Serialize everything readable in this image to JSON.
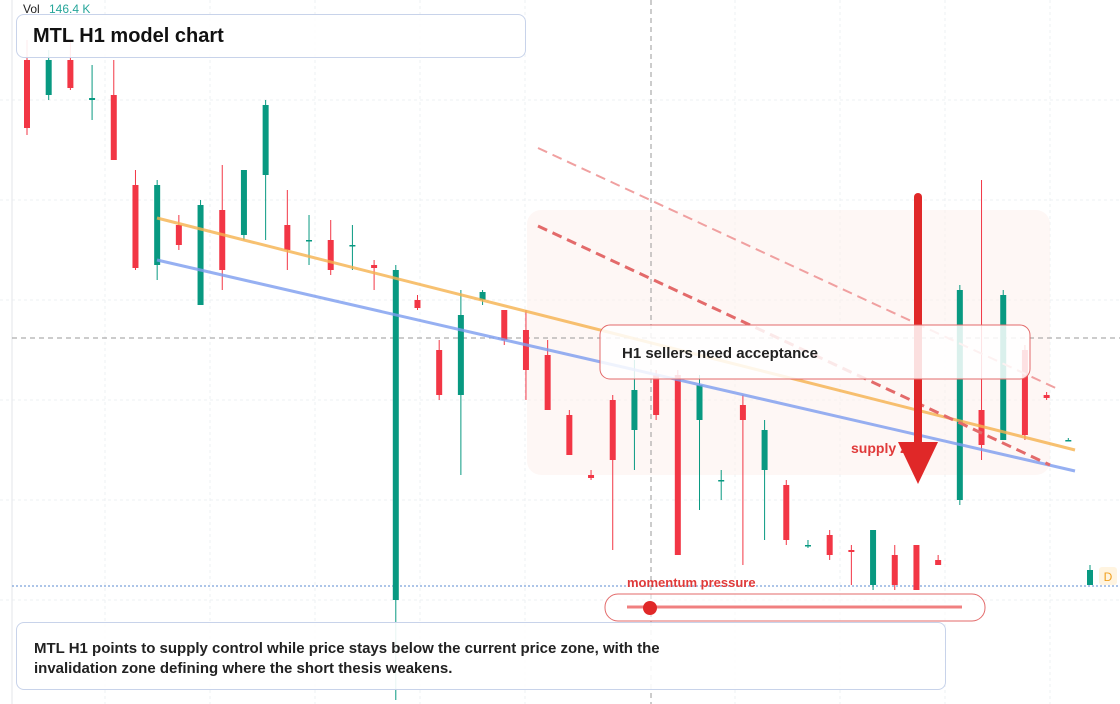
{
  "volume": {
    "label": "Vol",
    "value": "146.4 K"
  },
  "title": "MTL H1 model chart",
  "annotations": {
    "acceptance": "H1 sellers need acceptance",
    "supply": "supply zone",
    "momentum": "momentum pressure",
    "badge": "D",
    "caption": "MTL H1 points to supply control while price stays below the current price zone, with the invalidation zone defining where the short thesis weakens."
  },
  "chart_data": {
    "type": "candlestick",
    "up_color": "#089981",
    "down_color": "#f23645",
    "ylim": [
      0.596,
      1.3
    ],
    "candles": [
      [
        1.24,
        1.26,
        1.165,
        1.172
      ],
      [
        1.205,
        1.25,
        1.2,
        1.24
      ],
      [
        1.24,
        1.26,
        1.21,
        1.212
      ],
      [
        1.2,
        1.235,
        1.18,
        1.202
      ],
      [
        1.205,
        1.24,
        1.14,
        1.14
      ],
      [
        1.115,
        1.13,
        1.03,
        1.032
      ],
      [
        1.035,
        1.12,
        1.02,
        1.115
      ],
      [
        1.075,
        1.085,
        1.05,
        1.055
      ],
      [
        0.995,
        1.1,
        0.995,
        1.095
      ],
      [
        1.09,
        1.135,
        1.01,
        1.03
      ],
      [
        1.065,
        1.13,
        1.06,
        1.13
      ],
      [
        1.125,
        1.2,
        1.06,
        1.195
      ],
      [
        1.075,
        1.11,
        1.03,
        1.05
      ],
      [
        1.06,
        1.085,
        1.035,
        1.06
      ],
      [
        1.06,
        1.08,
        1.025,
        1.03
      ],
      [
        1.055,
        1.075,
        1.03,
        1.055
      ],
      [
        1.035,
        1.04,
        1.01,
        1.032
      ],
      [
        0.7,
        1.035,
        0.6,
        1.03
      ],
      [
        1.0,
        1.005,
        0.99,
        0.992
      ],
      [
        0.95,
        0.96,
        0.9,
        0.905
      ],
      [
        0.905,
        1.01,
        0.825,
        0.985
      ],
      [
        1.0,
        1.01,
        0.995,
        1.008
      ],
      [
        0.99,
        0.99,
        0.955,
        0.96
      ],
      [
        0.97,
        0.99,
        0.9,
        0.93
      ],
      [
        0.945,
        0.96,
        0.89,
        0.89
      ],
      [
        0.885,
        0.89,
        0.845,
        0.845
      ],
      [
        0.825,
        0.83,
        0.82,
        0.822
      ],
      [
        0.9,
        0.905,
        0.75,
        0.84
      ],
      [
        0.87,
        0.94,
        0.83,
        0.91
      ],
      [
        0.925,
        0.93,
        0.88,
        0.885
      ],
      [
        0.925,
        0.93,
        0.745,
        0.745
      ],
      [
        0.88,
        0.925,
        0.79,
        0.915
      ],
      [
        0.82,
        0.83,
        0.8,
        0.82
      ],
      [
        0.895,
        0.905,
        0.735,
        0.88
      ],
      [
        0.83,
        0.88,
        0.76,
        0.87
      ],
      [
        0.815,
        0.82,
        0.755,
        0.76
      ],
      [
        0.755,
        0.76,
        0.752,
        0.755
      ],
      [
        0.765,
        0.77,
        0.74,
        0.745
      ],
      [
        0.75,
        0.755,
        0.715,
        0.748
      ],
      [
        0.715,
        0.77,
        0.71,
        0.77
      ],
      [
        0.745,
        0.755,
        0.71,
        0.715
      ],
      [
        0.755,
        0.755,
        0.71,
        0.71
      ],
      [
        0.74,
        0.745,
        0.735,
        0.735
      ],
      [
        0.8,
        1.015,
        0.795,
        1.01
      ],
      [
        0.89,
        1.12,
        0.84,
        0.855
      ],
      [
        0.86,
        1.01,
        0.86,
        1.005
      ],
      [
        0.95,
        0.955,
        0.86,
        0.865
      ],
      [
        0.905,
        0.908,
        0.9,
        0.902
      ],
      [
        0.86,
        0.862,
        0.86,
        0.86
      ],
      [
        0.715,
        0.735,
        0.715,
        0.73
      ]
    ]
  }
}
